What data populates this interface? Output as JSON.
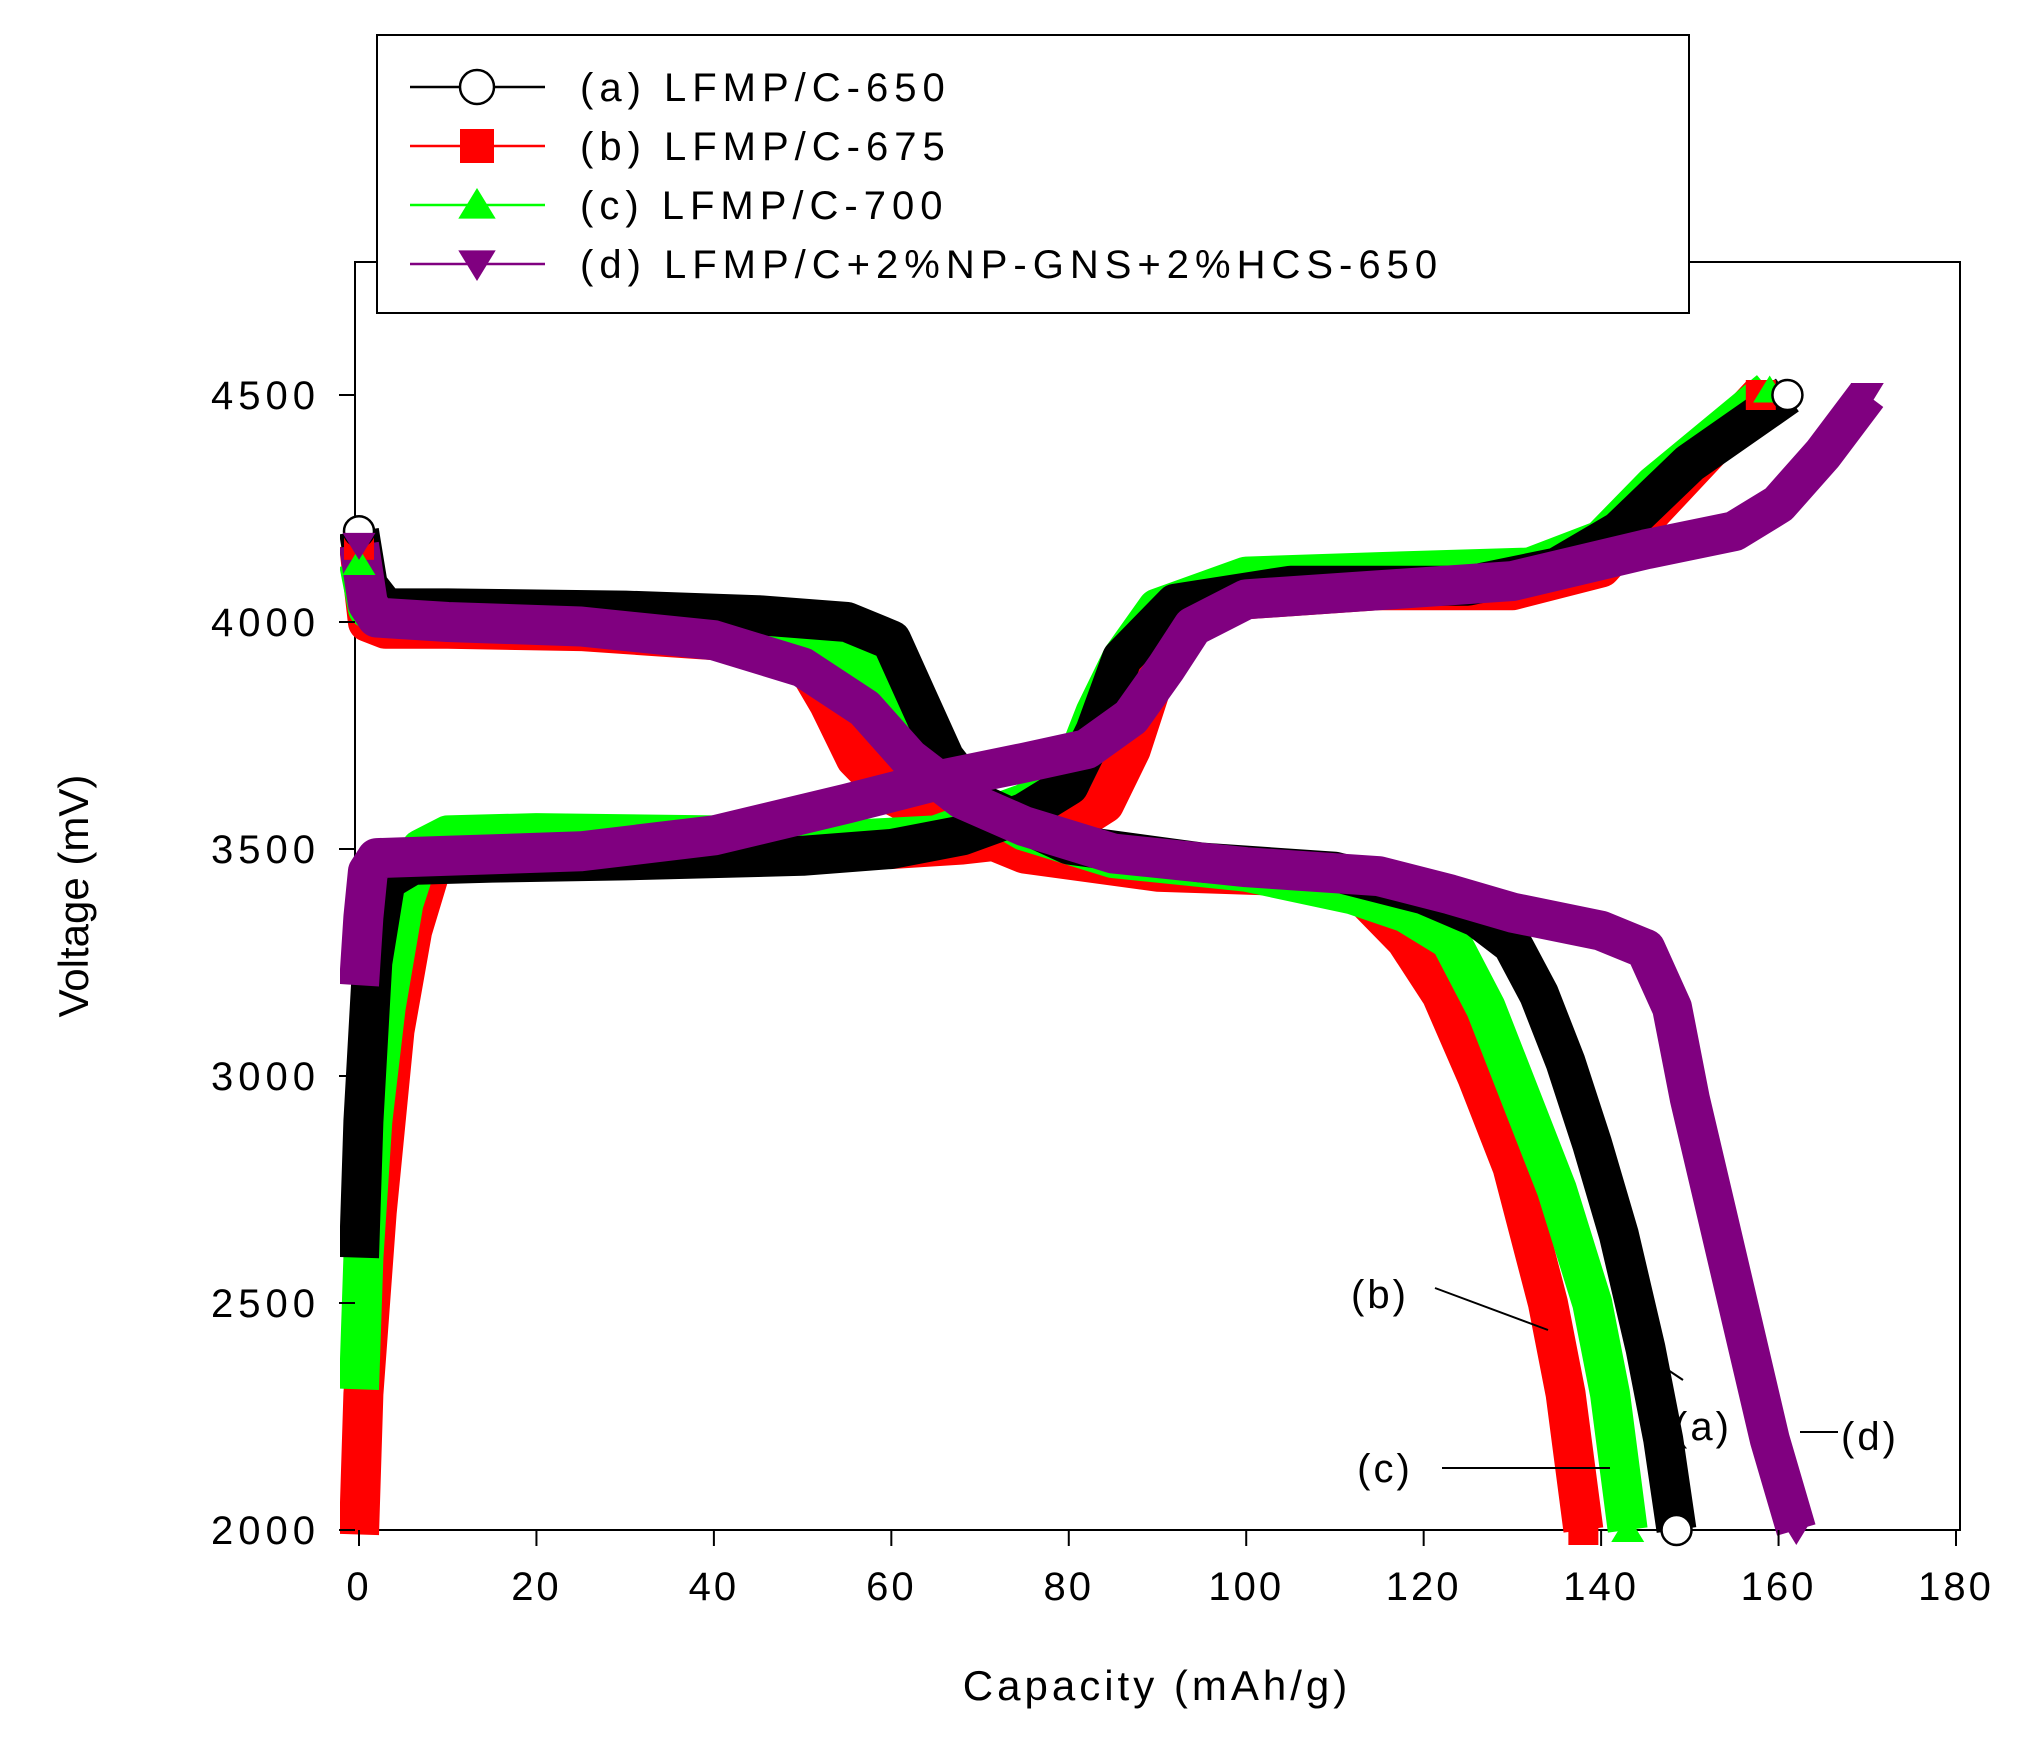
{
  "chart_data": {
    "type": "line",
    "title": "",
    "xlabel": "Capacity (mAh/g)",
    "ylabel": "Voltage (mV)",
    "xlim": [
      0,
      180
    ],
    "ylim": [
      2000,
      4800
    ],
    "x_ticks": [
      "0",
      "20",
      "40",
      "60",
      "80",
      "100",
      "120",
      "140",
      "160",
      "180"
    ],
    "x_tick_values": [
      0,
      20,
      40,
      60,
      80,
      100,
      120,
      140,
      160,
      180
    ],
    "y_ticks": [
      "2000",
      "2500",
      "3000",
      "3500",
      "4000",
      "4500"
    ],
    "y_tick_values": [
      2000,
      2500,
      3000,
      3500,
      4000,
      4500
    ],
    "grid": false,
    "legend_position": "top-left",
    "series": [
      {
        "name": "(a) LFMP/C-650",
        "color": "#000000",
        "marker": "circle-open",
        "annotation": "(a)",
        "charge": [
          [
            0,
            2600
          ],
          [
            0.5,
            2900
          ],
          [
            1.5,
            3250
          ],
          [
            3,
            3430
          ],
          [
            6,
            3465
          ],
          [
            15,
            3470
          ],
          [
            30,
            3475
          ],
          [
            50,
            3485
          ],
          [
            60,
            3500
          ],
          [
            68,
            3530
          ],
          [
            75,
            3580
          ],
          [
            80,
            3640
          ],
          [
            83,
            3760
          ],
          [
            86,
            3920
          ],
          [
            92,
            4040
          ],
          [
            105,
            4080
          ],
          [
            125,
            4080
          ],
          [
            135,
            4120
          ],
          [
            142,
            4200
          ],
          [
            150,
            4350
          ],
          [
            161,
            4500
          ]
        ],
        "discharge": [
          [
            0,
            4200
          ],
          [
            1,
            4080
          ],
          [
            3,
            4030
          ],
          [
            10,
            4030
          ],
          [
            30,
            4025
          ],
          [
            45,
            4015
          ],
          [
            55,
            4000
          ],
          [
            60,
            3960
          ],
          [
            63,
            3830
          ],
          [
            66,
            3700
          ],
          [
            70,
            3600
          ],
          [
            80,
            3510
          ],
          [
            95,
            3470
          ],
          [
            110,
            3450
          ],
          [
            120,
            3400
          ],
          [
            126,
            3350
          ],
          [
            130,
            3290
          ],
          [
            133,
            3180
          ],
          [
            136,
            3030
          ],
          [
            139,
            2850
          ],
          [
            142,
            2650
          ],
          [
            145,
            2400
          ],
          [
            147,
            2200
          ],
          [
            148.5,
            2000
          ]
        ]
      },
      {
        "name": "(b) LFMP/C-675",
        "color": "#ff0000",
        "marker": "square-filled",
        "annotation": "(b)",
        "charge": [
          [
            0,
            1990
          ],
          [
            0.5,
            2300
          ],
          [
            2,
            2700
          ],
          [
            4,
            3100
          ],
          [
            6,
            3320
          ],
          [
            8,
            3450
          ],
          [
            10,
            3495
          ],
          [
            20,
            3500
          ],
          [
            40,
            3500
          ],
          [
            60,
            3500
          ],
          [
            68,
            3510
          ],
          [
            75,
            3525
          ],
          [
            80,
            3550
          ],
          [
            84,
            3600
          ],
          [
            87,
            3720
          ],
          [
            90,
            3900
          ],
          [
            93,
            3990
          ],
          [
            100,
            4050
          ],
          [
            115,
            4070
          ],
          [
            130,
            4070
          ],
          [
            140,
            4120
          ],
          [
            146,
            4250
          ],
          [
            158,
            4500
          ]
        ],
        "discharge": [
          [
            0,
            4170
          ],
          [
            1,
            4000
          ],
          [
            3,
            3985
          ],
          [
            10,
            3985
          ],
          [
            25,
            3980
          ],
          [
            40,
            3960
          ],
          [
            50,
            3920
          ],
          [
            53,
            3820
          ],
          [
            56,
            3700
          ],
          [
            60,
            3620
          ],
          [
            65,
            3570
          ],
          [
            75,
            3490
          ],
          [
            90,
            3450
          ],
          [
            105,
            3440
          ],
          [
            113,
            3400
          ],
          [
            118,
            3300
          ],
          [
            122,
            3180
          ],
          [
            126,
            3000
          ],
          [
            130,
            2800
          ],
          [
            134,
            2500
          ],
          [
            136,
            2300
          ],
          [
            138,
            2000
          ]
        ]
      },
      {
        "name": "(c) LFMP/C-700",
        "color": "#00ff00",
        "marker": "triangle-up-filled",
        "annotation": "(c)",
        "charge": [
          [
            0,
            2310
          ],
          [
            0.5,
            2600
          ],
          [
            1.5,
            2900
          ],
          [
            3,
            3150
          ],
          [
            5,
            3380
          ],
          [
            7,
            3500
          ],
          [
            10,
            3530
          ],
          [
            20,
            3535
          ],
          [
            40,
            3530
          ],
          [
            55,
            3520
          ],
          [
            65,
            3530
          ],
          [
            75,
            3600
          ],
          [
            80,
            3650
          ],
          [
            83,
            3800
          ],
          [
            86,
            3920
          ],
          [
            90,
            4030
          ],
          [
            100,
            4100
          ],
          [
            115,
            4110
          ],
          [
            132,
            4120
          ],
          [
            140,
            4180
          ],
          [
            146,
            4300
          ],
          [
            159,
            4510
          ]
        ],
        "discharge": [
          [
            0,
            4130
          ],
          [
            1,
            4030
          ],
          [
            3,
            4015
          ],
          [
            10,
            4015
          ],
          [
            30,
            4005
          ],
          [
            45,
            3990
          ],
          [
            55,
            3940
          ],
          [
            60,
            3850
          ],
          [
            64,
            3720
          ],
          [
            68,
            3620
          ],
          [
            75,
            3540
          ],
          [
            85,
            3480
          ],
          [
            100,
            3450
          ],
          [
            112,
            3400
          ],
          [
            118,
            3360
          ],
          [
            123,
            3300
          ],
          [
            127,
            3150
          ],
          [
            131,
            2950
          ],
          [
            135,
            2750
          ],
          [
            139,
            2500
          ],
          [
            141,
            2300
          ],
          [
            143,
            2000
          ]
        ]
      },
      {
        "name": "(d) LFMP/C+2%NP-GNS+2%HCS-650",
        "color": "#800080",
        "marker": "triangle-down-filled",
        "annotation": "(d)",
        "charge": [
          [
            0,
            3200
          ],
          [
            0.5,
            3350
          ],
          [
            1,
            3450
          ],
          [
            2,
            3480
          ],
          [
            10,
            3485
          ],
          [
            25,
            3495
          ],
          [
            40,
            3530
          ],
          [
            55,
            3600
          ],
          [
            65,
            3650
          ],
          [
            75,
            3690
          ],
          [
            82,
            3720
          ],
          [
            87,
            3790
          ],
          [
            91,
            3900
          ],
          [
            94,
            3990
          ],
          [
            100,
            4050
          ],
          [
            115,
            4070
          ],
          [
            130,
            4090
          ],
          [
            145,
            4160
          ],
          [
            155,
            4200
          ],
          [
            160,
            4260
          ],
          [
            165,
            4370
          ],
          [
            170,
            4500
          ]
        ],
        "discharge": [
          [
            0,
            4170
          ],
          [
            1,
            4040
          ],
          [
            2,
            4010
          ],
          [
            10,
            4000
          ],
          [
            25,
            3990
          ],
          [
            40,
            3960
          ],
          [
            50,
            3900
          ],
          [
            57,
            3810
          ],
          [
            62,
            3700
          ],
          [
            68,
            3610
          ],
          [
            75,
            3550
          ],
          [
            85,
            3490
          ],
          [
            100,
            3460
          ],
          [
            115,
            3440
          ],
          [
            123,
            3400
          ],
          [
            130,
            3360
          ],
          [
            140,
            3320
          ],
          [
            145,
            3280
          ],
          [
            148,
            3150
          ],
          [
            150,
            2950
          ],
          [
            153,
            2700
          ],
          [
            156,
            2450
          ],
          [
            159,
            2200
          ],
          [
            162,
            2000
          ]
        ]
      }
    ],
    "annotations": [
      "(a)",
      "(b)",
      "(c)",
      "(d)"
    ]
  }
}
